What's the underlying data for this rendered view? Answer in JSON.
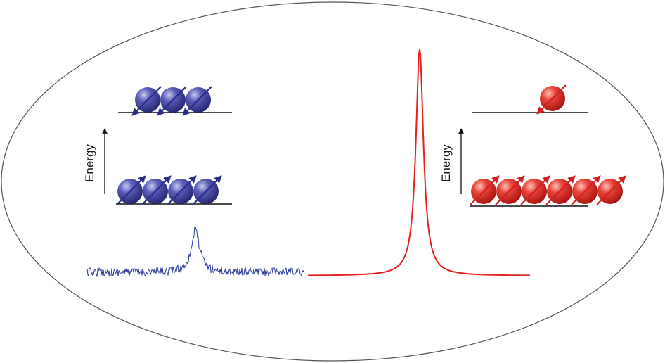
{
  "left_panel": {
    "axis_label": "Energy",
    "upper_level": {
      "atom_count": 3,
      "spin": "down"
    },
    "lower_level": {
      "atom_count": 4,
      "spin": "up"
    },
    "spectrum": {
      "kind": "noisy-peak"
    }
  },
  "right_panel": {
    "axis_label": "Energy",
    "upper_level": {
      "atom_count": 1,
      "spin": "down"
    },
    "lower_level": {
      "atom_count": 6,
      "spin": "up"
    },
    "spectrum": {
      "kind": "sharp-peak"
    }
  },
  "colors": {
    "outline": "#555555",
    "blue_atom": "#3d3f9e",
    "blue_highlight": "#b7b9e8",
    "blue_arrow": "#2a2c8a",
    "blue_spectrum": "#2b3a9c",
    "red_atom": "#e0302a",
    "red_highlight": "#fbb3ab",
    "red_arrow": "#d21f1f",
    "red_spectrum": "#e5201e",
    "level_line": "#111111"
  }
}
